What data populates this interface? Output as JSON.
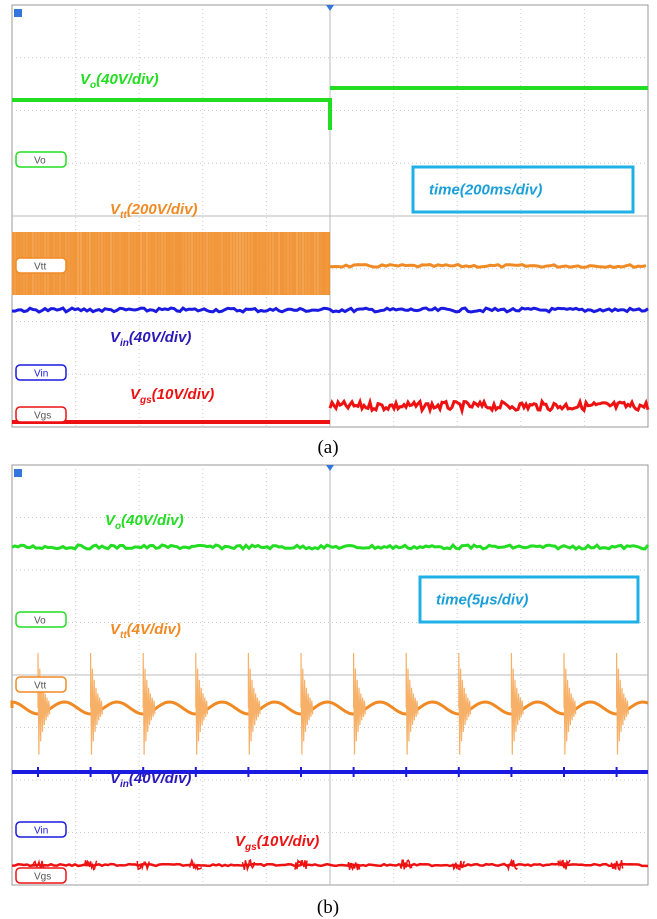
{
  "panels": [
    {
      "caption": "(a)",
      "time_label": "time(200ms/div)",
      "channels": [
        {
          "tag": "Vo",
          "symbol": "V",
          "sub": "o",
          "scale": "(40V/div)"
        },
        {
          "tag": "Vtt",
          "symbol": "V",
          "sub": "tt",
          "scale": "(200V/div)"
        },
        {
          "tag": "Vin",
          "symbol": "V",
          "sub": "in",
          "scale": "(40V/div)"
        },
        {
          "tag": "Vgs",
          "symbol": "V",
          "sub": "gs",
          "scale": "(10V/div)"
        }
      ]
    },
    {
      "caption": "(b)",
      "time_label": "time(5μs/div)",
      "channels": [
        {
          "tag": "Vo",
          "symbol": "V",
          "sub": "o",
          "scale": "(40V/div)"
        },
        {
          "tag": "Vtt",
          "symbol": "V",
          "sub": "tt",
          "scale": "(4V/div)"
        },
        {
          "tag": "Vin",
          "symbol": "V",
          "sub": "in",
          "scale": "(40V/div)"
        },
        {
          "tag": "Vgs",
          "symbol": "V",
          "sub": "gs",
          "scale": "(10V/div)"
        }
      ]
    }
  ]
}
